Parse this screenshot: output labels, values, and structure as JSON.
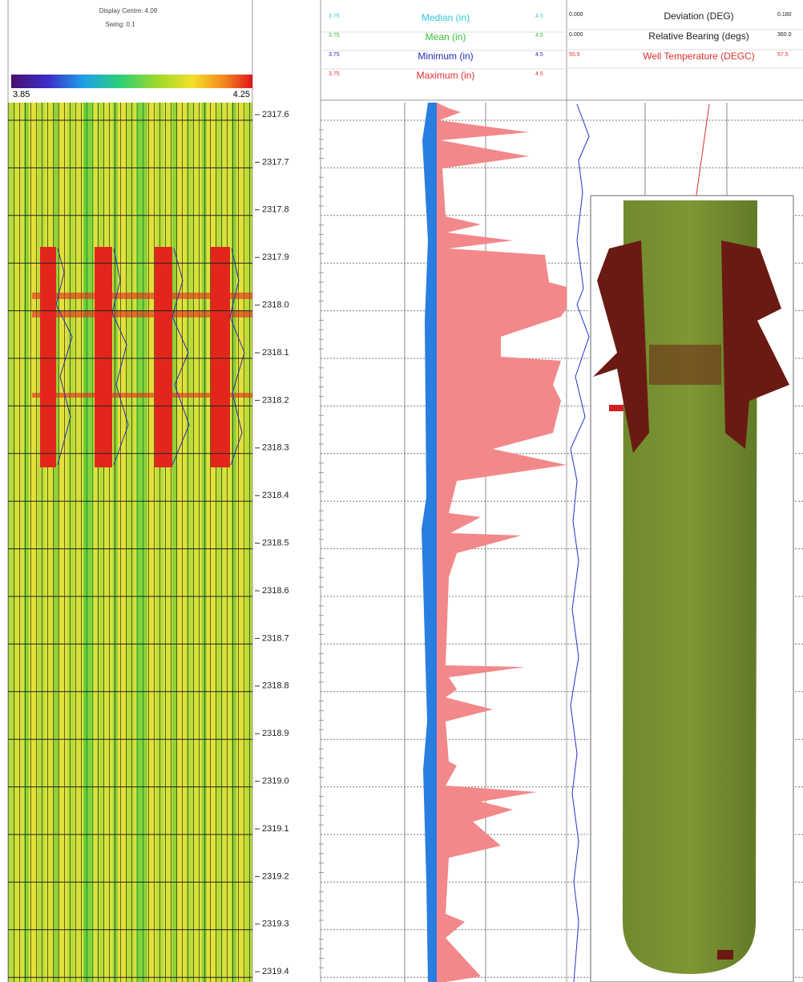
{
  "panel_left": {
    "display_centre": "Display Centre: 4.09",
    "swing": "Swing: 0.1",
    "scale_min": "3.85",
    "scale_max": "4.25"
  },
  "depths": [
    "2317.6",
    "2317.7",
    "2317.8",
    "2317.9",
    "2318.0",
    "2318.1",
    "2318.2",
    "2318.3",
    "2318.4",
    "2318.5",
    "2318.6",
    "2318.7",
    "2318.8",
    "2318.9",
    "2319.0",
    "2319.1",
    "2319.2",
    "2319.3",
    "2319.4"
  ],
  "track2": {
    "curves": [
      {
        "min": "3.75",
        "name": "Median (in)",
        "max": "4.5",
        "color": "#2ec8e0"
      },
      {
        "min": "3.75",
        "name": "Mean (in)",
        "max": "4.5",
        "color": "#33c233"
      },
      {
        "min": "3.75",
        "name": "Minimum (in)",
        "max": "4.5",
        "color": "#2a2ab8"
      },
      {
        "min": "3.75",
        "name": "Maximum (in)",
        "max": "4.5",
        "color": "#e03030"
      }
    ]
  },
  "track3": {
    "curves": [
      {
        "min": "0.000",
        "name": "Deviation (DEG)",
        "max": "0.180",
        "color": "#222222"
      },
      {
        "min": "0.000",
        "name": "Relative Bearing (degs)",
        "max": "360.0",
        "color": "#222222"
      },
      {
        "min": "55.5",
        "name": "Well Temperature (DEGC)",
        "max": "57.5",
        "color": "#e03030"
      }
    ]
  }
}
